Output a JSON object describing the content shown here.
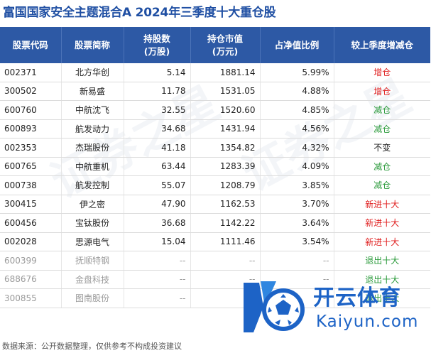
{
  "title": "富国国家安全主题混合A  2024年三季度十大重仓股",
  "table": {
    "headers": {
      "code": "股票代码",
      "name": "股票简称",
      "shares": "持股数\n(万股)",
      "market_value": "持仓市值\n(万元)",
      "nav_ratio": "占净值比例",
      "change": "较上季度增减仓"
    },
    "rows": [
      {
        "code": "002371",
        "name": "北方华创",
        "shares": "5.14",
        "market_value": "1881.14",
        "nav_ratio": "5.99%",
        "change": "增仓",
        "change_type": "up"
      },
      {
        "code": "300502",
        "name": "新易盛",
        "shares": "11.78",
        "market_value": "1531.05",
        "nav_ratio": "4.88%",
        "change": "增仓",
        "change_type": "up"
      },
      {
        "code": "600760",
        "name": "中航沈飞",
        "shares": "32.55",
        "market_value": "1520.60",
        "nav_ratio": "4.85%",
        "change": "减仓",
        "change_type": "down"
      },
      {
        "code": "600893",
        "name": "航发动力",
        "shares": "34.68",
        "market_value": "1431.94",
        "nav_ratio": "4.56%",
        "change": "减仓",
        "change_type": "down"
      },
      {
        "code": "002353",
        "name": "杰瑞股份",
        "shares": "41.18",
        "market_value": "1354.82",
        "nav_ratio": "4.32%",
        "change": "不变",
        "change_type": "flat"
      },
      {
        "code": "600765",
        "name": "中航重机",
        "shares": "63.44",
        "market_value": "1283.39",
        "nav_ratio": "4.09%",
        "change": "减仓",
        "change_type": "down"
      },
      {
        "code": "000738",
        "name": "航发控制",
        "shares": "55.07",
        "market_value": "1208.79",
        "nav_ratio": "3.85%",
        "change": "减仓",
        "change_type": "down"
      },
      {
        "code": "300415",
        "name": "伊之密",
        "shares": "47.90",
        "market_value": "1162.53",
        "nav_ratio": "3.70%",
        "change": "新进十大",
        "change_type": "up"
      },
      {
        "code": "600456",
        "name": "宝钛股份",
        "shares": "36.68",
        "market_value": "1142.22",
        "nav_ratio": "3.64%",
        "change": "新进十大",
        "change_type": "up"
      },
      {
        "code": "002028",
        "name": "思源电气",
        "shares": "15.04",
        "market_value": "1111.46",
        "nav_ratio": "3.54%",
        "change": "新进十大",
        "change_type": "up"
      },
      {
        "code": "600399",
        "name": "抚顺特钢",
        "shares": "--",
        "market_value": "--",
        "nav_ratio": "--",
        "change": "退出十大",
        "change_type": "down",
        "exited": true
      },
      {
        "code": "688676",
        "name": "金盘科技",
        "shares": "--",
        "market_value": "--",
        "nav_ratio": "--",
        "change": "退出十大",
        "change_type": "down",
        "exited": true
      },
      {
        "code": "300855",
        "name": "图南股份",
        "shares": "--",
        "market_value": "--",
        "nav_ratio": "--",
        "change": "退出十大",
        "change_type": "down",
        "exited": true
      }
    ]
  },
  "footer": "数据来源：公开数据整理，仅供参考不构成投资建议",
  "watermark": {
    "brand_cn": "开云体育",
    "brand_en": "Kaiyun.com",
    "background_text": "证券之星"
  },
  "colors": {
    "title": "#1f4fa3",
    "header_bg": "#2d59a5",
    "increase": "#e02020",
    "decrease": "#2a9a3a",
    "exited_text": "#9a9a9a",
    "watermark": "#1d63c6"
  }
}
